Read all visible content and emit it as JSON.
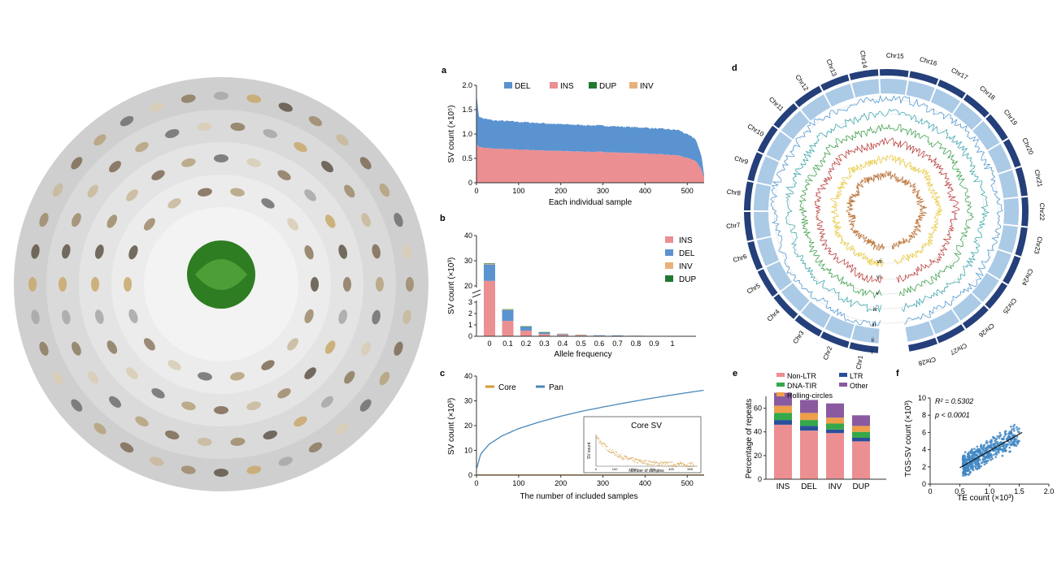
{
  "colors": {
    "DEL": "#5b93d1",
    "INS": "#ec8f92",
    "DUP": "#1f7a30",
    "INV": "#e7b27a",
    "Core": "#d49a3a",
    "Pan": "#4a87b8",
    "NonLTR": "#ec8f92",
    "LTR": "#2a4f9a",
    "DNATIR": "#34a84a",
    "RollingCircles": "#ef9f4a",
    "Other": "#8a5aa0",
    "scatter": "#3f86c2",
    "circos_ring": "#243f7a",
    "track_blue": "#3e8fd0",
    "track_teal": "#2aa0a8",
    "track_green": "#2e9a3e",
    "track_red": "#b8302e",
    "track_yellow": "#e8c62a",
    "track_brown": "#b86a2a"
  },
  "chart_data": [
    {
      "panel": "a",
      "type": "area",
      "ylabel": "SV count (×10⁵)",
      "xlabel": "Each individual sample",
      "xlim": [
        0,
        540
      ],
      "ylim": [
        0,
        2.0
      ],
      "xticks": [
        "0",
        "100",
        "200",
        "300",
        "400",
        "500"
      ],
      "yticks": [
        "0",
        "0.5",
        "1.0",
        "1.5",
        "2.0"
      ],
      "legend": [
        "DEL",
        "INS",
        "DUP",
        "INV"
      ],
      "x": [
        0,
        5,
        15,
        40,
        100,
        200,
        300,
        400,
        480,
        520,
        535,
        540
      ],
      "series": [
        {
          "name": "INS",
          "values": [
            0.8,
            0.74,
            0.72,
            0.7,
            0.68,
            0.65,
            0.63,
            0.6,
            0.56,
            0.45,
            0.25,
            0.1
          ]
        },
        {
          "name": "DEL",
          "values": [
            1.05,
            0.63,
            0.6,
            0.58,
            0.57,
            0.55,
            0.54,
            0.53,
            0.52,
            0.45,
            0.25,
            0.05
          ]
        }
      ]
    },
    {
      "panel": "b",
      "type": "bar",
      "ylabel": "SV count (×10³)",
      "xlabel": "Allele frequency",
      "categories": [
        "0",
        "0.1",
        "0.2",
        "0.3",
        "0.4",
        "0.5",
        "0.6",
        "0.7",
        "0.8",
        "0.9",
        "1"
      ],
      "yticks_upper": [
        "20",
        "30",
        "40"
      ],
      "yticks_lower": [
        "0",
        "1",
        "2",
        "3"
      ],
      "legend": [
        "INS",
        "DEL",
        "INV",
        "DUP"
      ],
      "series": [
        {
          "name": "INS",
          "values": [
            22,
            1.35,
            0.5,
            0.2,
            0.12,
            0.08,
            0.05,
            0.04,
            0.03,
            0.01,
            0
          ]
        },
        {
          "name": "DEL",
          "values": [
            6.5,
            0.95,
            0.35,
            0.15,
            0.1,
            0.06,
            0.04,
            0.03,
            0.02,
            0.01,
            0
          ]
        },
        {
          "name": "INV",
          "values": [
            0.3,
            0.05,
            0.02,
            0.01,
            0.01,
            0.01,
            0,
            0,
            0,
            0,
            0
          ]
        },
        {
          "name": "DUP",
          "values": [
            0.2,
            0.03,
            0.01,
            0.01,
            0,
            0,
            0,
            0,
            0,
            0,
            0
          ]
        }
      ]
    },
    {
      "panel": "c",
      "type": "line",
      "ylabel": "SV count (×10³)",
      "xlabel": "The number of included samples",
      "xlim": [
        0,
        540
      ],
      "ylim": [
        0,
        40
      ],
      "xticks": [
        "0",
        "100",
        "200",
        "300",
        "400",
        "500"
      ],
      "yticks": [
        "0",
        "10",
        "20",
        "30",
        "40"
      ],
      "legend": [
        "Core",
        "Pan"
      ],
      "inset_title": "Core SV",
      "inset_ylabel": "SV count",
      "inset_xlabel": "Number of samples",
      "inset_xticks": [
        "0",
        "100",
        "200",
        "300",
        "400",
        "500"
      ],
      "series": [
        {
          "name": "Pan",
          "x": [
            1,
            10,
            30,
            60,
            100,
            150,
            200,
            250,
            300,
            350,
            400,
            450,
            500,
            540
          ],
          "values": [
            3,
            8.5,
            12.5,
            15.8,
            18.8,
            21.5,
            23.8,
            25.8,
            27.5,
            29.1,
            30.6,
            32,
            33.3,
            34.3
          ]
        },
        {
          "name": "Core",
          "x": [
            0,
            540
          ],
          "values": [
            0.1,
            0.1
          ]
        }
      ]
    },
    {
      "panel": "d",
      "type": "circos",
      "chromosomes": [
        "Chr1",
        "Chr2",
        "Chr3",
        "Chr4",
        "Chr5",
        "Chr6",
        "Chr7",
        "Chr8",
        "Chr9",
        "Chr10",
        "Chr11",
        "Chr12",
        "Chr13",
        "Chr14",
        "Chr15",
        "Chr16",
        "Chr17",
        "Chr18",
        "Chr19",
        "Chr20",
        "Chr21",
        "Chr22",
        "Chr23",
        "Chr24",
        "Chr25",
        "Chr26",
        "Chr27",
        "Chr28"
      ],
      "tracks": [
        "vii",
        "vi",
        "v",
        "iv",
        "iii",
        "ii",
        "i"
      ]
    },
    {
      "panel": "e",
      "type": "bar",
      "stacked": true,
      "ylabel": "Percentage of repeats",
      "categories": [
        "INS",
        "DEL",
        "INV",
        "DUP"
      ],
      "yticks": [
        "0",
        "20",
        "40",
        "60"
      ],
      "ylim": [
        0,
        68
      ],
      "legend": [
        "Non-LTR",
        "LTR",
        "DNA-TIR",
        "Other",
        "Rolling-circles"
      ],
      "series": [
        {
          "name": "Non-LTR",
          "values": [
            46,
            41,
            39,
            32
          ]
        },
        {
          "name": "LTR",
          "values": [
            4,
            4,
            3,
            3
          ]
        },
        {
          "name": "DNA-TIR",
          "values": [
            6,
            5,
            5,
            5
          ]
        },
        {
          "name": "Rolling-circles",
          "values": [
            6,
            6,
            5,
            5
          ]
        },
        {
          "name": "Other",
          "values": [
            11,
            11,
            12,
            9
          ]
        }
      ]
    },
    {
      "panel": "f",
      "type": "scatter",
      "xlabel": "TE count (×10³)",
      "ylabel": "TGS-SV count (×10³)",
      "xlim": [
        0,
        2.0
      ],
      "ylim": [
        0,
        10
      ],
      "xticks": [
        "0",
        "0.5",
        "1.0",
        "1.5",
        "2.0"
      ],
      "yticks": [
        "0",
        "2",
        "4",
        "6",
        "8",
        "10"
      ],
      "annotations": [
        "R² = 0.5302",
        "p < 0.0001"
      ],
      "fit": {
        "x": [
          0.5,
          1.55
        ],
        "y": [
          1.9,
          6.0
        ]
      }
    }
  ]
}
